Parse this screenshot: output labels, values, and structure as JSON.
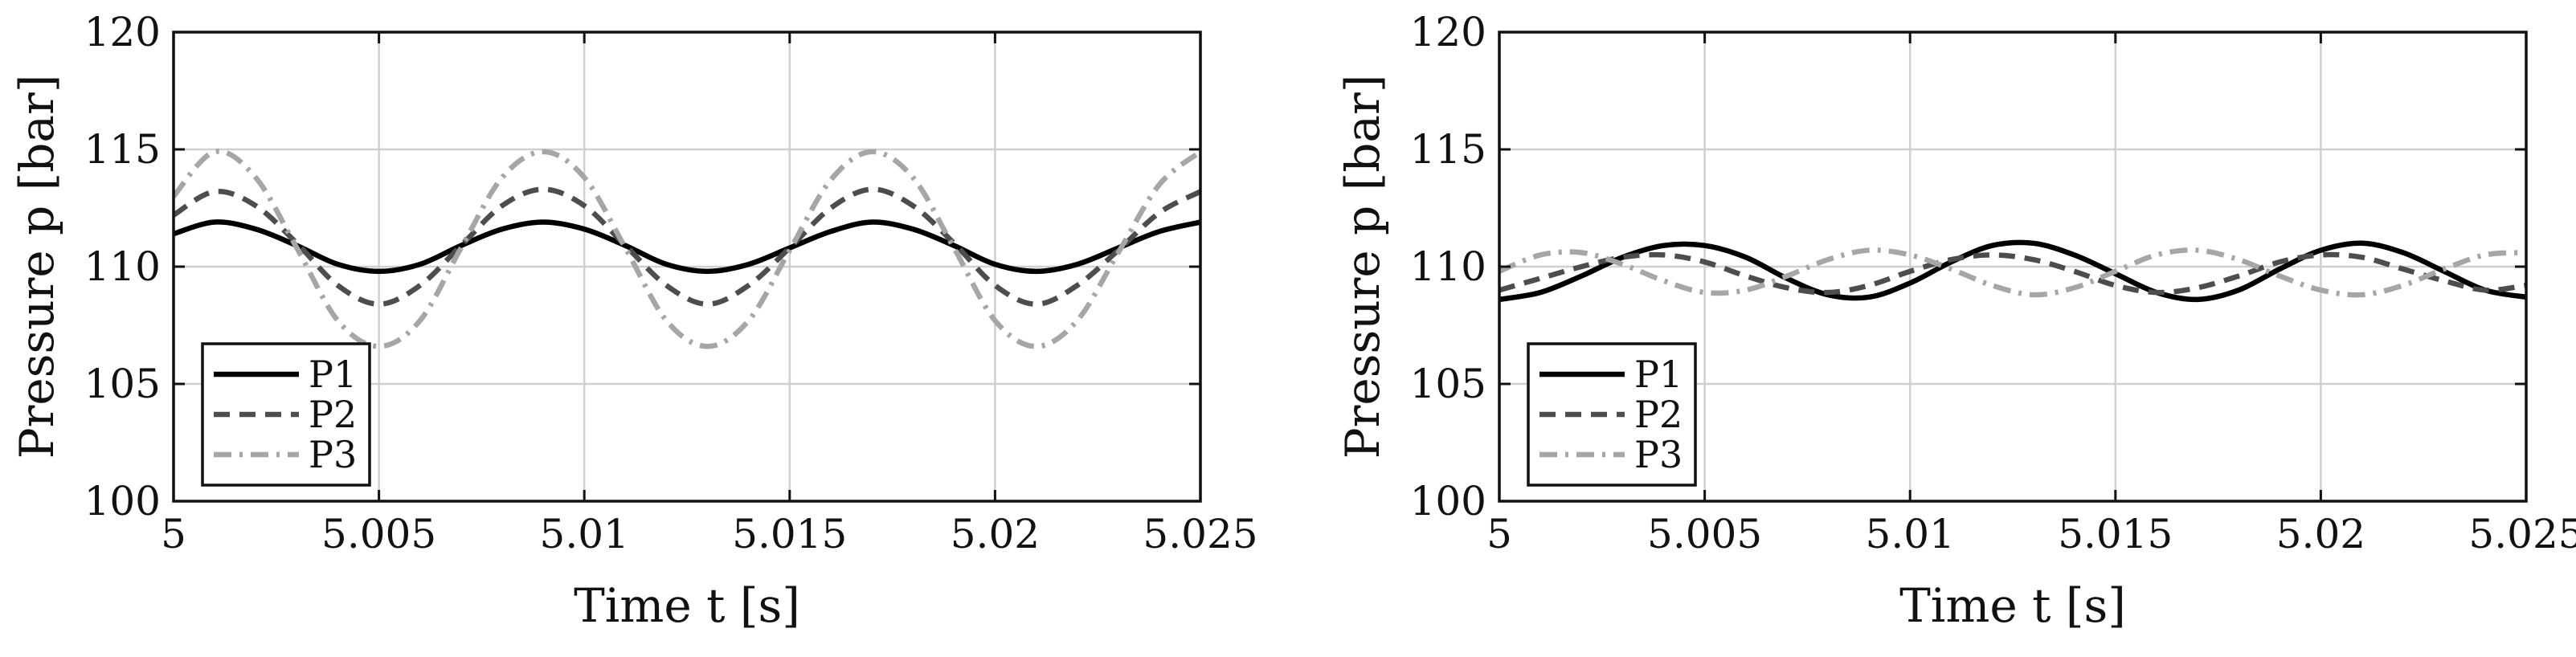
{
  "chart_data": [
    {
      "type": "line",
      "xlabel": "Time t [s]",
      "ylabel": "Pressure p [bar]",
      "xlim": [
        5,
        5.025
      ],
      "ylim": [
        100,
        120
      ],
      "xticks": [
        5,
        5.005,
        5.01,
        5.015,
        5.02,
        5.025
      ],
      "xtick_labels": [
        "5",
        "5.005",
        "5.01",
        "5.015",
        "5.02",
        "5.025"
      ],
      "yticks": [
        100,
        105,
        110,
        115,
        120
      ],
      "ytick_labels": [
        "100",
        "105",
        "110",
        "115",
        "120"
      ],
      "grid": true,
      "legend_position": "bottom-left",
      "x": [
        5.0,
        5.001,
        5.002,
        5.003,
        5.004,
        5.005,
        5.006,
        5.007,
        5.008,
        5.009,
        5.01,
        5.011,
        5.012,
        5.013,
        5.014,
        5.015,
        5.016,
        5.017,
        5.018,
        5.019,
        5.02,
        5.021,
        5.022,
        5.023,
        5.024,
        5.025
      ],
      "series": [
        {
          "name": "P1",
          "color": "#000000",
          "style": "solid",
          "values": [
            111.4,
            111.9,
            111.6,
            110.9,
            110.1,
            109.8,
            110.1,
            110.9,
            111.6,
            111.9,
            111.6,
            110.9,
            110.1,
            109.8,
            110.1,
            110.8,
            111.5,
            111.9,
            111.6,
            110.9,
            110.1,
            109.8,
            110.1,
            110.8,
            111.5,
            111.9
          ]
        },
        {
          "name": "P2",
          "color": "#4d4d4d",
          "style": "dashed",
          "values": [
            112.2,
            113.2,
            112.6,
            111.0,
            109.2,
            108.4,
            109.2,
            110.9,
            112.6,
            113.3,
            112.6,
            110.9,
            109.2,
            108.4,
            109.2,
            110.8,
            112.5,
            113.3,
            112.6,
            111.0,
            109.2,
            108.4,
            109.2,
            110.7,
            112.3,
            113.2
          ]
        },
        {
          "name": "P3",
          "color": "#a6a6a6",
          "style": "dashdot",
          "values": [
            113.0,
            114.9,
            113.8,
            110.8,
            107.7,
            106.6,
            107.7,
            110.8,
            113.8,
            114.9,
            113.8,
            110.8,
            107.7,
            106.6,
            107.7,
            110.7,
            113.7,
            114.9,
            113.8,
            110.8,
            107.7,
            106.6,
            107.7,
            110.6,
            113.5,
            114.9
          ]
        }
      ]
    },
    {
      "type": "line",
      "xlabel": "Time t [s]",
      "ylabel": "Pressure p [bar]",
      "xlim": [
        5,
        5.025
      ],
      "ylim": [
        100,
        120
      ],
      "xticks": [
        5,
        5.005,
        5.01,
        5.015,
        5.02,
        5.025
      ],
      "xtick_labels": [
        "5",
        "5.005",
        "5.01",
        "5.015",
        "5.02",
        "5.025"
      ],
      "yticks": [
        100,
        105,
        110,
        115,
        120
      ],
      "ytick_labels": [
        "100",
        "105",
        "110",
        "115",
        "120"
      ],
      "grid": true,
      "legend_position": "bottom-left",
      "x": [
        5.0,
        5.001,
        5.002,
        5.003,
        5.004,
        5.005,
        5.006,
        5.007,
        5.008,
        5.009,
        5.01,
        5.011,
        5.012,
        5.013,
        5.014,
        5.015,
        5.016,
        5.017,
        5.018,
        5.019,
        5.02,
        5.021,
        5.022,
        5.023,
        5.024,
        5.025
      ],
      "series": [
        {
          "name": "P1",
          "color": "#000000",
          "style": "solid",
          "values": [
            108.6,
            108.9,
            109.6,
            110.4,
            110.9,
            110.9,
            110.4,
            109.5,
            108.8,
            108.7,
            109.3,
            110.2,
            110.9,
            111.0,
            110.5,
            109.7,
            108.9,
            108.6,
            109.0,
            109.9,
            110.7,
            111.0,
            110.6,
            109.8,
            109.0,
            108.7
          ]
        },
        {
          "name": "P2",
          "color": "#4d4d4d",
          "style": "dashed",
          "values": [
            109.0,
            109.5,
            110.0,
            110.4,
            110.5,
            110.2,
            109.6,
            109.1,
            108.9,
            109.2,
            109.8,
            110.3,
            110.5,
            110.3,
            109.8,
            109.2,
            108.9,
            109.1,
            109.6,
            110.2,
            110.5,
            110.4,
            109.9,
            109.4,
            109.0,
            109.2
          ]
        },
        {
          "name": "P3",
          "color": "#a6a6a6",
          "style": "dashdot",
          "values": [
            109.8,
            110.5,
            110.6,
            110.1,
            109.4,
            108.9,
            109.0,
            109.6,
            110.3,
            110.7,
            110.5,
            109.9,
            109.2,
            108.8,
            109.1,
            109.8,
            110.5,
            110.7,
            110.3,
            109.6,
            109.0,
            108.8,
            109.2,
            109.9,
            110.5,
            110.6
          ]
        }
      ]
    }
  ]
}
